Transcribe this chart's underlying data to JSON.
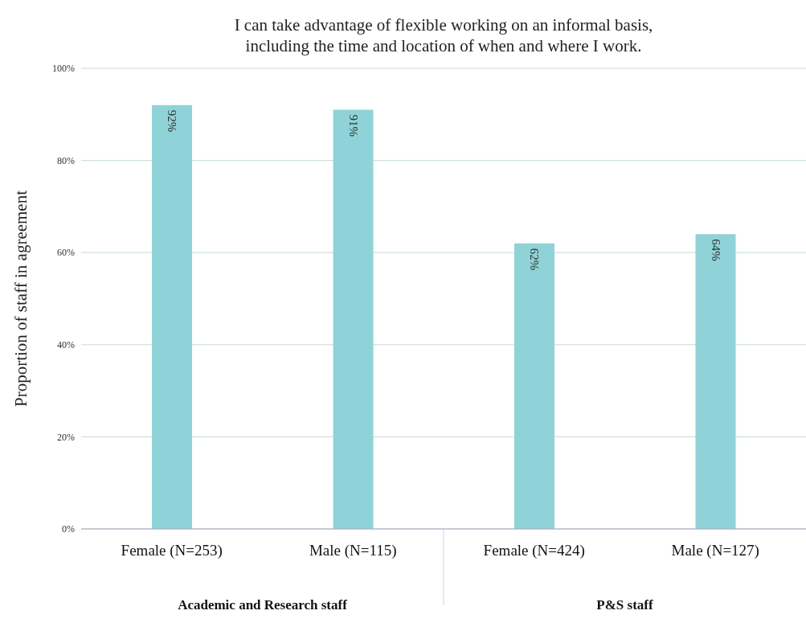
{
  "chart_data": {
    "type": "bar",
    "title": "I can take advantage of flexible working on an informal basis,\nincluding the time and location of when and where I work.",
    "ylabel": "Proportion of  staff in  agreement",
    "categories": [
      "Female (N=253)",
      "Male (N=115)",
      "Female  (N=424)",
      "Male (N=127)"
    ],
    "values": [
      92,
      91,
      62,
      64
    ],
    "value_labels": [
      "92%",
      "91%",
      "62%",
      "64%"
    ],
    "color": "#8fd3d8",
    "ylim": [
      0,
      100
    ],
    "yticks": [
      {
        "value": 0,
        "label": "0%"
      },
      {
        "value": 20,
        "label": "20%"
      },
      {
        "value": 40,
        "label": "40%"
      },
      {
        "value": 60,
        "label": "60%"
      },
      {
        "value": 80,
        "label": "80%"
      },
      {
        "value": 100,
        "label": "100%"
      }
    ],
    "grid": "y",
    "annotations": [
      "Academic and Research staff",
      "P&S staff"
    ]
  }
}
